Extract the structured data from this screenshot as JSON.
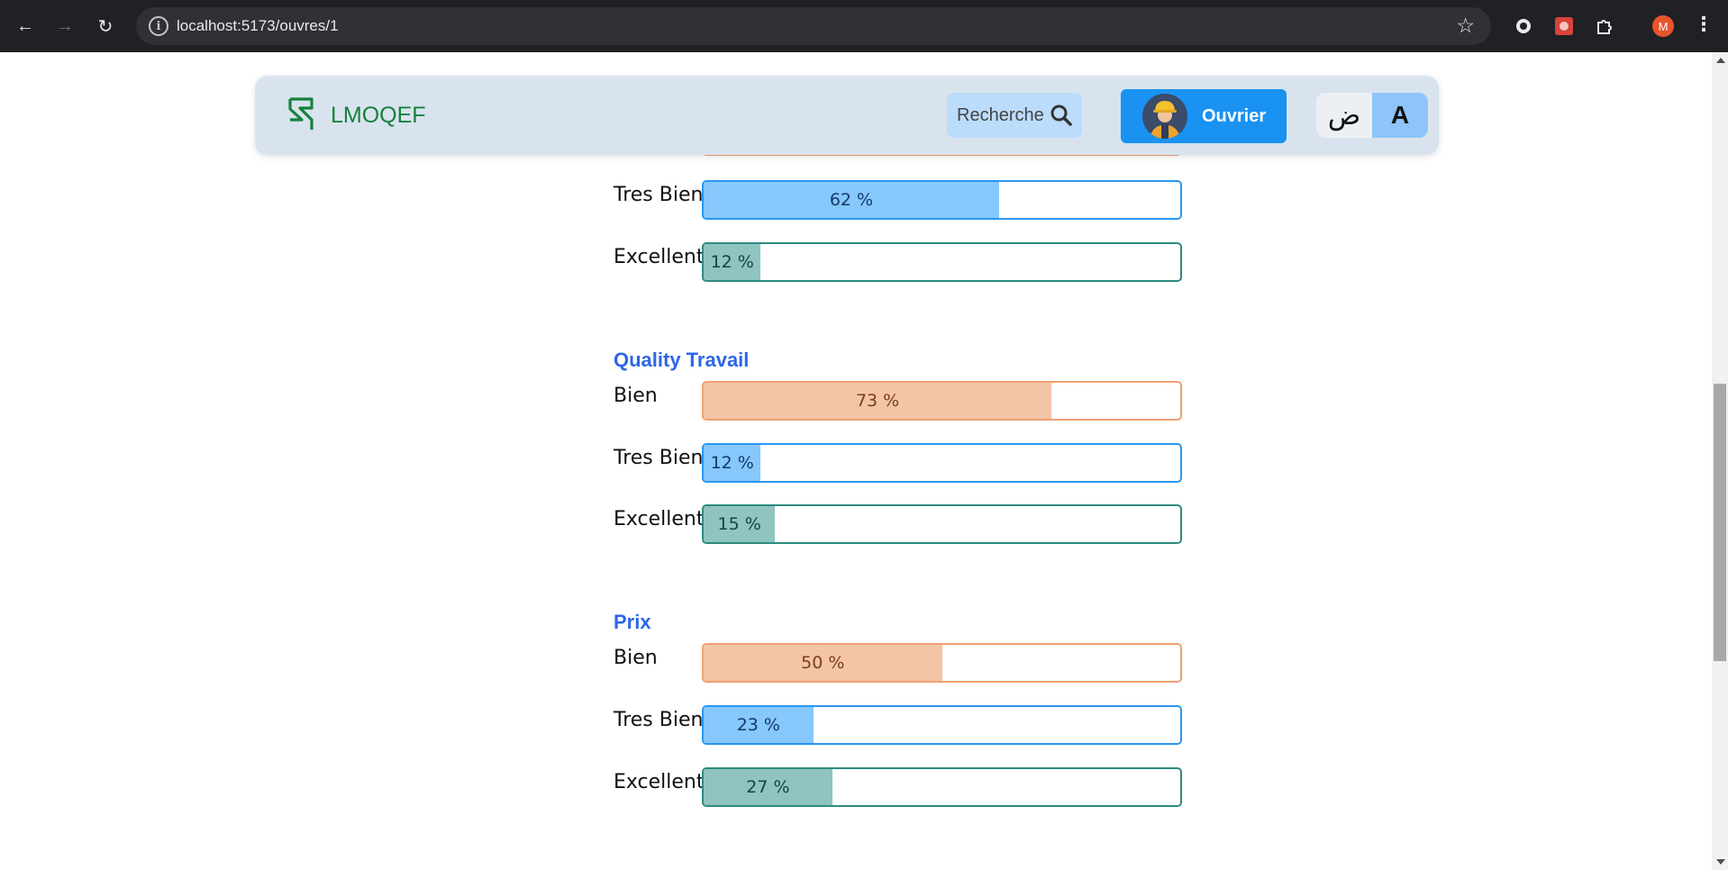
{
  "browser": {
    "url": "localhost:5173/ouvres/1",
    "profile_initial": "M"
  },
  "navbar": {
    "brand": "LMOQEF",
    "search_label": "Recherche",
    "role_label": "Ouvrier",
    "lang_arabic": "ض",
    "lang_latin": "A"
  },
  "ratings": {
    "previous": {
      "tres_bien": {
        "label": "Tres Bien",
        "value": 62,
        "text": "62 %"
      },
      "excellent": {
        "label": "Excellent",
        "value": 12,
        "text": "12 %"
      }
    },
    "quality": {
      "title": "Quality Travail",
      "bien": {
        "label": "Bien",
        "value": 73,
        "text": "73 %"
      },
      "tres_bien": {
        "label": "Tres Bien",
        "value": 12,
        "text": "12 %"
      },
      "excellent": {
        "label": "Excellent",
        "value": 15,
        "text": "15 %"
      }
    },
    "prix": {
      "title": "Prix",
      "bien": {
        "label": "Bien",
        "value": 50,
        "text": "50 %"
      },
      "tres_bien": {
        "label": "Tres Bien",
        "value": 23,
        "text": "23 %"
      },
      "excellent": {
        "label": "Excellent",
        "value": 27,
        "text": "27 %"
      }
    }
  }
}
